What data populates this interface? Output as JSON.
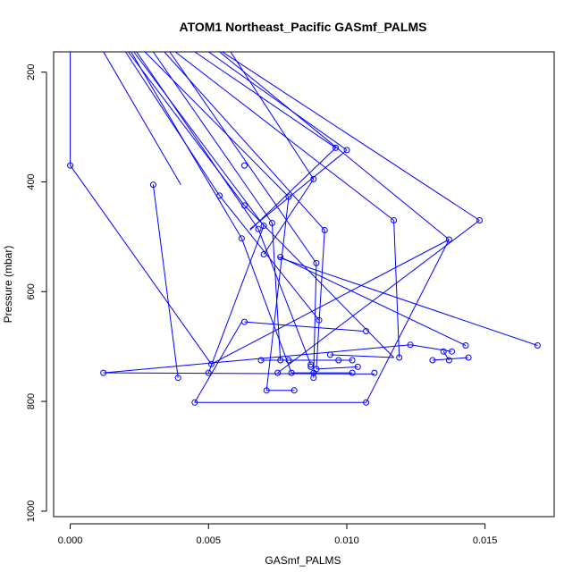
{
  "chart_data": {
    "type": "line",
    "title": "ATOM1 Northeast_Pacific GASmf_PALMS",
    "xlabel": "GASmf_PALMS",
    "ylabel": "Pressure (mbar)",
    "xlim": [
      -0.0006,
      0.0175
    ],
    "ylim": [
      1010,
      163
    ],
    "y_reversed": true,
    "x_ticks": [
      0.0,
      0.005,
      0.01,
      0.015
    ],
    "x_tick_labels": [
      "0.000",
      "0.005",
      "0.010",
      "0.015"
    ],
    "y_ticks": [
      200,
      400,
      600,
      800,
      1000
    ],
    "y_tick_labels": [
      "200",
      "400",
      "600",
      "800",
      "1000"
    ],
    "grid": false,
    "series_color": "#0000ff",
    "series": [
      {
        "line": true,
        "x": [
          0.0,
          0.0
        ],
        "y": [
          163,
          370
        ]
      },
      {
        "line": true,
        "x": [
          0.0012,
          0.004
        ],
        "y": [
          163,
          405
        ]
      },
      {
        "line": true,
        "x": [
          0.002,
          0.0054
        ],
        "y": [
          163,
          425
        ]
      },
      {
        "line": true,
        "x": [
          0.0021,
          0.0063
        ],
        "y": [
          163,
          443
        ]
      },
      {
        "line": true,
        "x": [
          0.0022,
          0.0062
        ],
        "y": [
          163,
          503
        ]
      },
      {
        "line": true,
        "x": [
          0.0023,
          0.007
        ],
        "y": [
          163,
          480
        ]
      },
      {
        "line": true,
        "x": [
          0.0024,
          0.0068
        ],
        "y": [
          163,
          486
        ]
      },
      {
        "line": true,
        "x": [
          0.0027,
          0.0079
        ],
        "y": [
          163,
          427
        ]
      },
      {
        "line": true,
        "x": [
          0.003,
          0.0073
        ],
        "y": [
          163,
          475
        ]
      },
      {
        "line": true,
        "x": [
          0.0034,
          0.0092
        ],
        "y": [
          163,
          488
        ]
      },
      {
        "line": true,
        "x": [
          0.0036,
          0.0089
        ],
        "y": [
          163,
          548
        ]
      },
      {
        "line": true,
        "x": [
          0.0038,
          0.0117
        ],
        "y": [
          163,
          470
        ]
      },
      {
        "line": true,
        "x": [
          0.0045,
          0.0096
        ],
        "y": [
          163,
          338
        ]
      },
      {
        "line": true,
        "x": [
          0.005,
          0.01
        ],
        "y": [
          163,
          342
        ]
      },
      {
        "line": true,
        "x": [
          0.0054,
          0.0137
        ],
        "y": [
          163,
          505
        ]
      },
      {
        "line": true,
        "x": [
          0.0055,
          0.0148
        ],
        "y": [
          163,
          470
        ]
      },
      {
        "line": true,
        "x": [
          0.0058,
          0.0088
        ],
        "y": [
          163,
          395
        ]
      },
      {
        "line": true,
        "x": [
          0.0,
          0.0051
        ],
        "y": [
          370,
          732
        ]
      },
      {
        "line": true,
        "x": [
          0.003,
          0.0039
        ],
        "y": [
          405,
          757
        ]
      },
      {
        "line": true,
        "x": [
          0.0054,
          0.009
        ],
        "y": [
          425,
          652
        ]
      },
      {
        "line": true,
        "x": [
          0.0063,
          0.0117
        ],
        "y": [
          443,
          720
        ]
      },
      {
        "line": true,
        "x": [
          0.0062,
          0.008
        ],
        "y": [
          503,
          748
        ]
      },
      {
        "line": true,
        "x": [
          0.007,
          0.005
        ],
        "y": [
          480,
          748
        ]
      },
      {
        "line": true,
        "x": [
          0.0068,
          0.0087
        ],
        "y": [
          486,
          733
        ]
      },
      {
        "line": true,
        "x": [
          0.0079,
          0.0071
        ],
        "y": [
          427,
          780
        ]
      },
      {
        "line": true,
        "x": [
          0.0073,
          0.0076
        ],
        "y": [
          475,
          725
        ]
      },
      {
        "line": true,
        "x": [
          0.0092,
          0.0089
        ],
        "y": [
          488,
          741
        ]
      },
      {
        "line": true,
        "x": [
          0.0089,
          0.0088
        ],
        "y": [
          548,
          757
        ]
      },
      {
        "line": true,
        "x": [
          0.0117,
          0.0119
        ],
        "y": [
          470,
          720
        ]
      },
      {
        "line": true,
        "x": [
          0.0096,
          0.0065
        ],
        "y": [
          338,
          488
        ]
      },
      {
        "line": true,
        "x": [
          0.01,
          0.0065
        ],
        "y": [
          342,
          486
        ]
      },
      {
        "line": true,
        "x": [
          0.0137,
          0.0051
        ],
        "y": [
          505,
          732
        ]
      },
      {
        "line": true,
        "x": [
          0.0148,
          0.0075
        ],
        "y": [
          470,
          748
        ]
      },
      {
        "line": true,
        "x": [
          0.0088,
          0.007
        ],
        "y": [
          395,
          532
        ]
      },
      {
        "line": true,
        "x": [
          0.0075,
          0.0169
        ],
        "y": [
          537,
          698
        ]
      },
      {
        "line": true,
        "x": [
          0.0076,
          0.0143
        ],
        "y": [
          537,
          698
        ]
      },
      {
        "line": true,
        "x": [
          0.0063,
          0.0106
        ],
        "y": [
          655,
          672
        ]
      },
      {
        "line": true,
        "x": [
          0.0012,
          0.0123
        ],
        "y": [
          748,
          697
        ]
      },
      {
        "line": true,
        "x": [
          0.0012,
          0.011
        ],
        "y": [
          748,
          750
        ]
      },
      {
        "line": true,
        "x": [
          0.0045,
          0.0107
        ],
        "y": [
          802,
          802
        ]
      },
      {
        "line": true,
        "x": [
          0.0107,
          0.0137
        ],
        "y": [
          802,
          505
        ]
      },
      {
        "line": true,
        "x": [
          0.0045,
          0.0062
        ],
        "y": [
          802,
          655
        ]
      },
      {
        "line": true,
        "x": [
          0.0069,
          0.0102
        ],
        "y": [
          725,
          725
        ]
      },
      {
        "line": true,
        "x": [
          0.008,
          0.0102
        ],
        "y": [
          748,
          748
        ]
      },
      {
        "line": true,
        "x": [
          0.0089,
          0.0104
        ],
        "y": [
          741,
          737
        ]
      },
      {
        "line": true,
        "x": [
          0.0071,
          0.0081
        ],
        "y": [
          780,
          780
        ]
      },
      {
        "line": true,
        "x": [
          0.0094,
          0.0117
        ],
        "y": [
          715,
          720
        ]
      },
      {
        "line": true,
        "x": [
          0.0123,
          0.0138
        ],
        "y": [
          697,
          709
        ]
      },
      {
        "line": true,
        "x": [
          0.0131,
          0.0144
        ],
        "y": [
          725,
          720
        ]
      },
      {
        "line": true,
        "x": [
          0.0135,
          0.0137
        ],
        "y": [
          709,
          725
        ]
      }
    ],
    "points": [
      [
        0.0,
        370
      ],
      [
        0.003,
        405
      ],
      [
        0.0054,
        425
      ],
      [
        0.0063,
        443
      ],
      [
        0.0063,
        370
      ],
      [
        0.0062,
        503
      ],
      [
        0.007,
        480
      ],
      [
        0.0068,
        486
      ],
      [
        0.0079,
        427
      ],
      [
        0.0073,
        475
      ],
      [
        0.0092,
        488
      ],
      [
        0.0089,
        548
      ],
      [
        0.0117,
        470
      ],
      [
        0.0096,
        338
      ],
      [
        0.01,
        342
      ],
      [
        0.0137,
        505
      ],
      [
        0.0148,
        470
      ],
      [
        0.0088,
        395
      ],
      [
        0.007,
        532
      ],
      [
        0.0076,
        537
      ],
      [
        0.009,
        652
      ],
      [
        0.0063,
        655
      ],
      [
        0.0107,
        672
      ],
      [
        0.0169,
        698
      ],
      [
        0.0143,
        698
      ],
      [
        0.0123,
        697
      ],
      [
        0.0135,
        709
      ],
      [
        0.0138,
        709
      ],
      [
        0.0119,
        720
      ],
      [
        0.0144,
        720
      ],
      [
        0.0131,
        725
      ],
      [
        0.0137,
        725
      ],
      [
        0.0094,
        715
      ],
      [
        0.0051,
        732
      ],
      [
        0.0087,
        733
      ],
      [
        0.0087,
        737
      ],
      [
        0.0104,
        737
      ],
      [
        0.0089,
        741
      ],
      [
        0.0069,
        725
      ],
      [
        0.0076,
        725
      ],
      [
        0.0079,
        725
      ],
      [
        0.0097,
        725
      ],
      [
        0.0102,
        725
      ],
      [
        0.0012,
        748
      ],
      [
        0.005,
        748
      ],
      [
        0.0075,
        748
      ],
      [
        0.008,
        748
      ],
      [
        0.0088,
        748
      ],
      [
        0.0102,
        748
      ],
      [
        0.011,
        748
      ],
      [
        0.0039,
        757
      ],
      [
        0.0088,
        757
      ],
      [
        0.0071,
        780
      ],
      [
        0.0081,
        780
      ],
      [
        0.0045,
        802
      ],
      [
        0.0107,
        802
      ]
    ]
  }
}
